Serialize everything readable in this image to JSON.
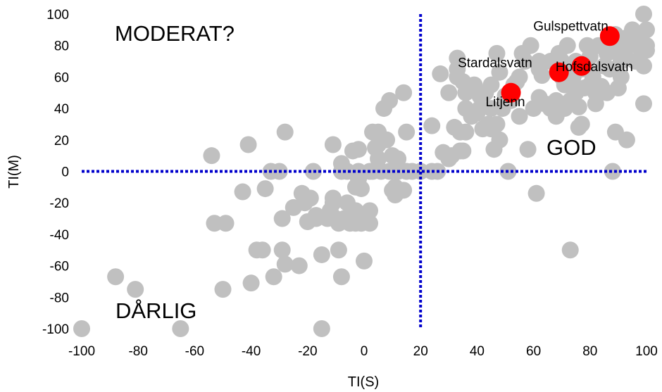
{
  "chart_data": {
    "type": "scatter",
    "xlabel": "TI(S)",
    "ylabel": "TI(M)",
    "xlim": [
      -100,
      100
    ],
    "ylim": [
      -100,
      100
    ],
    "x_ticks": [
      "-100",
      "-80",
      "-60",
      "-40",
      "-20",
      "0",
      "20",
      "40",
      "60",
      "80",
      "100"
    ],
    "y_ticks": [
      "-100",
      "-80",
      "-60",
      "-40",
      "-20",
      "0",
      "20",
      "40",
      "60",
      "80",
      "100"
    ],
    "grid": false,
    "thresholds": {
      "x": 20,
      "y": 0,
      "color": "#0000cc"
    },
    "quadrant_labels": {
      "top_left": "MODERAT?",
      "bottom_left": "DÅRLIG",
      "right": "GOD"
    },
    "series": [
      {
        "color": "#c0c0c0",
        "points": [
          [
            -100,
            -100
          ],
          [
            -88,
            -67
          ],
          [
            -81,
            -75
          ],
          [
            -65,
            -100
          ],
          [
            -54,
            10
          ],
          [
            -53,
            -33
          ],
          [
            -49,
            -33
          ],
          [
            -50,
            -75
          ],
          [
            -43,
            -13
          ],
          [
            -41,
            17
          ],
          [
            -40,
            -71
          ],
          [
            -38,
            -50
          ],
          [
            -36,
            -50
          ],
          [
            -35,
            -11
          ],
          [
            -33,
            0
          ],
          [
            -32,
            -67
          ],
          [
            -30,
            0
          ],
          [
            -29,
            -30
          ],
          [
            -29,
            -50
          ],
          [
            -28,
            -59
          ],
          [
            -28,
            25
          ],
          [
            -25,
            -23
          ],
          [
            -23,
            -60
          ],
          [
            -22,
            -14
          ],
          [
            -21,
            -20
          ],
          [
            -20,
            -32
          ],
          [
            -19,
            -17
          ],
          [
            -18,
            0
          ],
          [
            -17,
            -30
          ],
          [
            -17,
            -28
          ],
          [
            -15,
            -53
          ],
          [
            -15,
            -100
          ],
          [
            -13,
            -30
          ],
          [
            -12,
            -25
          ],
          [
            -11,
            -17
          ],
          [
            -11,
            -20
          ],
          [
            -11,
            17
          ],
          [
            -10,
            -30
          ],
          [
            -9,
            -33
          ],
          [
            -9,
            -50
          ],
          [
            -8,
            5
          ],
          [
            -8,
            0
          ],
          [
            -8,
            -67
          ],
          [
            -7,
            -30
          ],
          [
            -6,
            -20
          ],
          [
            -6,
            0
          ],
          [
            -5,
            -33
          ],
          [
            -4,
            13
          ],
          [
            -3,
            -10
          ],
          [
            -3,
            -25
          ],
          [
            -3,
            -33
          ],
          [
            -3,
            -30
          ],
          [
            -2,
            0
          ],
          [
            -2,
            -5
          ],
          [
            -2,
            14
          ],
          [
            -1,
            -30
          ],
          [
            -1,
            -33
          ],
          [
            -1,
            -11
          ],
          [
            0,
            -57
          ],
          [
            2,
            0
          ],
          [
            2,
            -33
          ],
          [
            2,
            -25
          ],
          [
            3,
            25
          ],
          [
            3,
            0
          ],
          [
            4,
            15
          ],
          [
            5,
            17
          ],
          [
            5,
            8
          ],
          [
            5,
            25
          ],
          [
            6,
            0
          ],
          [
            7,
            40
          ],
          [
            8,
            20
          ],
          [
            9,
            45
          ],
          [
            9,
            0
          ],
          [
            10,
            -12
          ],
          [
            10,
            10
          ],
          [
            11,
            -10
          ],
          [
            11,
            -15
          ],
          [
            12,
            0
          ],
          [
            12,
            8
          ],
          [
            14,
            -12
          ],
          [
            14,
            50
          ],
          [
            15,
            0
          ],
          [
            15,
            25
          ],
          [
            17,
            0
          ],
          [
            20,
            0
          ],
          [
            24,
            29
          ],
          [
            24,
            0
          ],
          [
            26,
            0
          ],
          [
            27,
            62
          ],
          [
            28,
            12
          ],
          [
            30,
            50
          ],
          [
            30,
            8
          ],
          [
            31,
            10
          ],
          [
            32,
            28
          ],
          [
            33,
            60
          ],
          [
            33,
            72
          ],
          [
            33,
            65
          ],
          [
            34,
            13
          ],
          [
            34,
            25
          ],
          [
            35,
            13
          ],
          [
            35,
            57
          ],
          [
            36,
            40
          ],
          [
            36,
            25
          ],
          [
            36,
            50
          ],
          [
            37,
            52
          ],
          [
            38,
            35
          ],
          [
            39,
            55
          ],
          [
            40,
            37
          ],
          [
            41,
            40
          ],
          [
            41,
            48
          ],
          [
            42,
            27
          ],
          [
            43,
            50
          ],
          [
            44,
            30
          ],
          [
            45,
            27
          ],
          [
            45,
            55
          ],
          [
            45,
            40
          ],
          [
            46,
            14
          ],
          [
            47,
            30
          ],
          [
            47,
            75
          ],
          [
            48,
            63
          ],
          [
            48,
            20
          ],
          [
            49,
            40
          ],
          [
            50,
            48
          ],
          [
            51,
            0
          ],
          [
            52,
            45
          ],
          [
            53,
            55
          ],
          [
            54,
            57
          ],
          [
            55,
            60
          ],
          [
            55,
            35
          ],
          [
            56,
            75
          ],
          [
            57,
            70
          ],
          [
            58,
            14
          ],
          [
            59,
            80
          ],
          [
            60,
            40
          ],
          [
            61,
            -14
          ],
          [
            62,
            70
          ],
          [
            62,
            47
          ],
          [
            62,
            65
          ],
          [
            63,
            61
          ],
          [
            64,
            43
          ],
          [
            66,
            40
          ],
          [
            66,
            70
          ],
          [
            67,
            43
          ],
          [
            68,
            35
          ],
          [
            68,
            45
          ],
          [
            69,
            75
          ],
          [
            70,
            60
          ],
          [
            70,
            70
          ],
          [
            71,
            40
          ],
          [
            71,
            55
          ],
          [
            72,
            63
          ],
          [
            72,
            80
          ],
          [
            73,
            -50
          ],
          [
            73,
            45
          ],
          [
            74,
            60
          ],
          [
            75,
            70
          ],
          [
            75,
            50
          ],
          [
            76,
            28
          ],
          [
            76,
            41
          ],
          [
            77,
            65
          ],
          [
            77,
            30
          ],
          [
            78,
            53
          ],
          [
            79,
            65
          ],
          [
            79,
            80
          ],
          [
            80,
            55
          ],
          [
            80,
            73
          ],
          [
            81,
            60
          ],
          [
            82,
            43
          ],
          [
            82,
            50
          ],
          [
            83,
            80
          ],
          [
            84,
            54
          ],
          [
            85,
            67
          ],
          [
            86,
            75
          ],
          [
            86,
            50
          ],
          [
            87,
            65
          ],
          [
            88,
            0
          ],
          [
            89,
            77
          ],
          [
            89,
            87
          ],
          [
            89,
            25
          ],
          [
            90,
            53
          ],
          [
            90,
            80
          ],
          [
            91,
            60
          ],
          [
            91,
            70
          ],
          [
            92,
            82
          ],
          [
            92,
            75
          ],
          [
            93,
            85
          ],
          [
            93,
            20
          ],
          [
            94,
            80
          ],
          [
            95,
            90
          ],
          [
            96,
            70
          ],
          [
            97,
            87
          ],
          [
            98,
            78
          ],
          [
            99,
            67
          ],
          [
            99,
            43
          ],
          [
            99,
            100
          ],
          [
            100,
            80
          ],
          [
            100,
            90
          ],
          [
            100,
            77
          ]
        ]
      },
      {
        "color": "#ff0000",
        "points": [
          {
            "label": "Gulspettvatn",
            "x": 87,
            "y": 86
          },
          {
            "label": "Hofsdalsvatn",
            "x": 77,
            "y": 67
          },
          {
            "label": "Stardalsvatn",
            "x": 69,
            "y": 63
          },
          {
            "label": "Litjenn",
            "x": 52,
            "y": 50
          }
        ]
      }
    ]
  }
}
